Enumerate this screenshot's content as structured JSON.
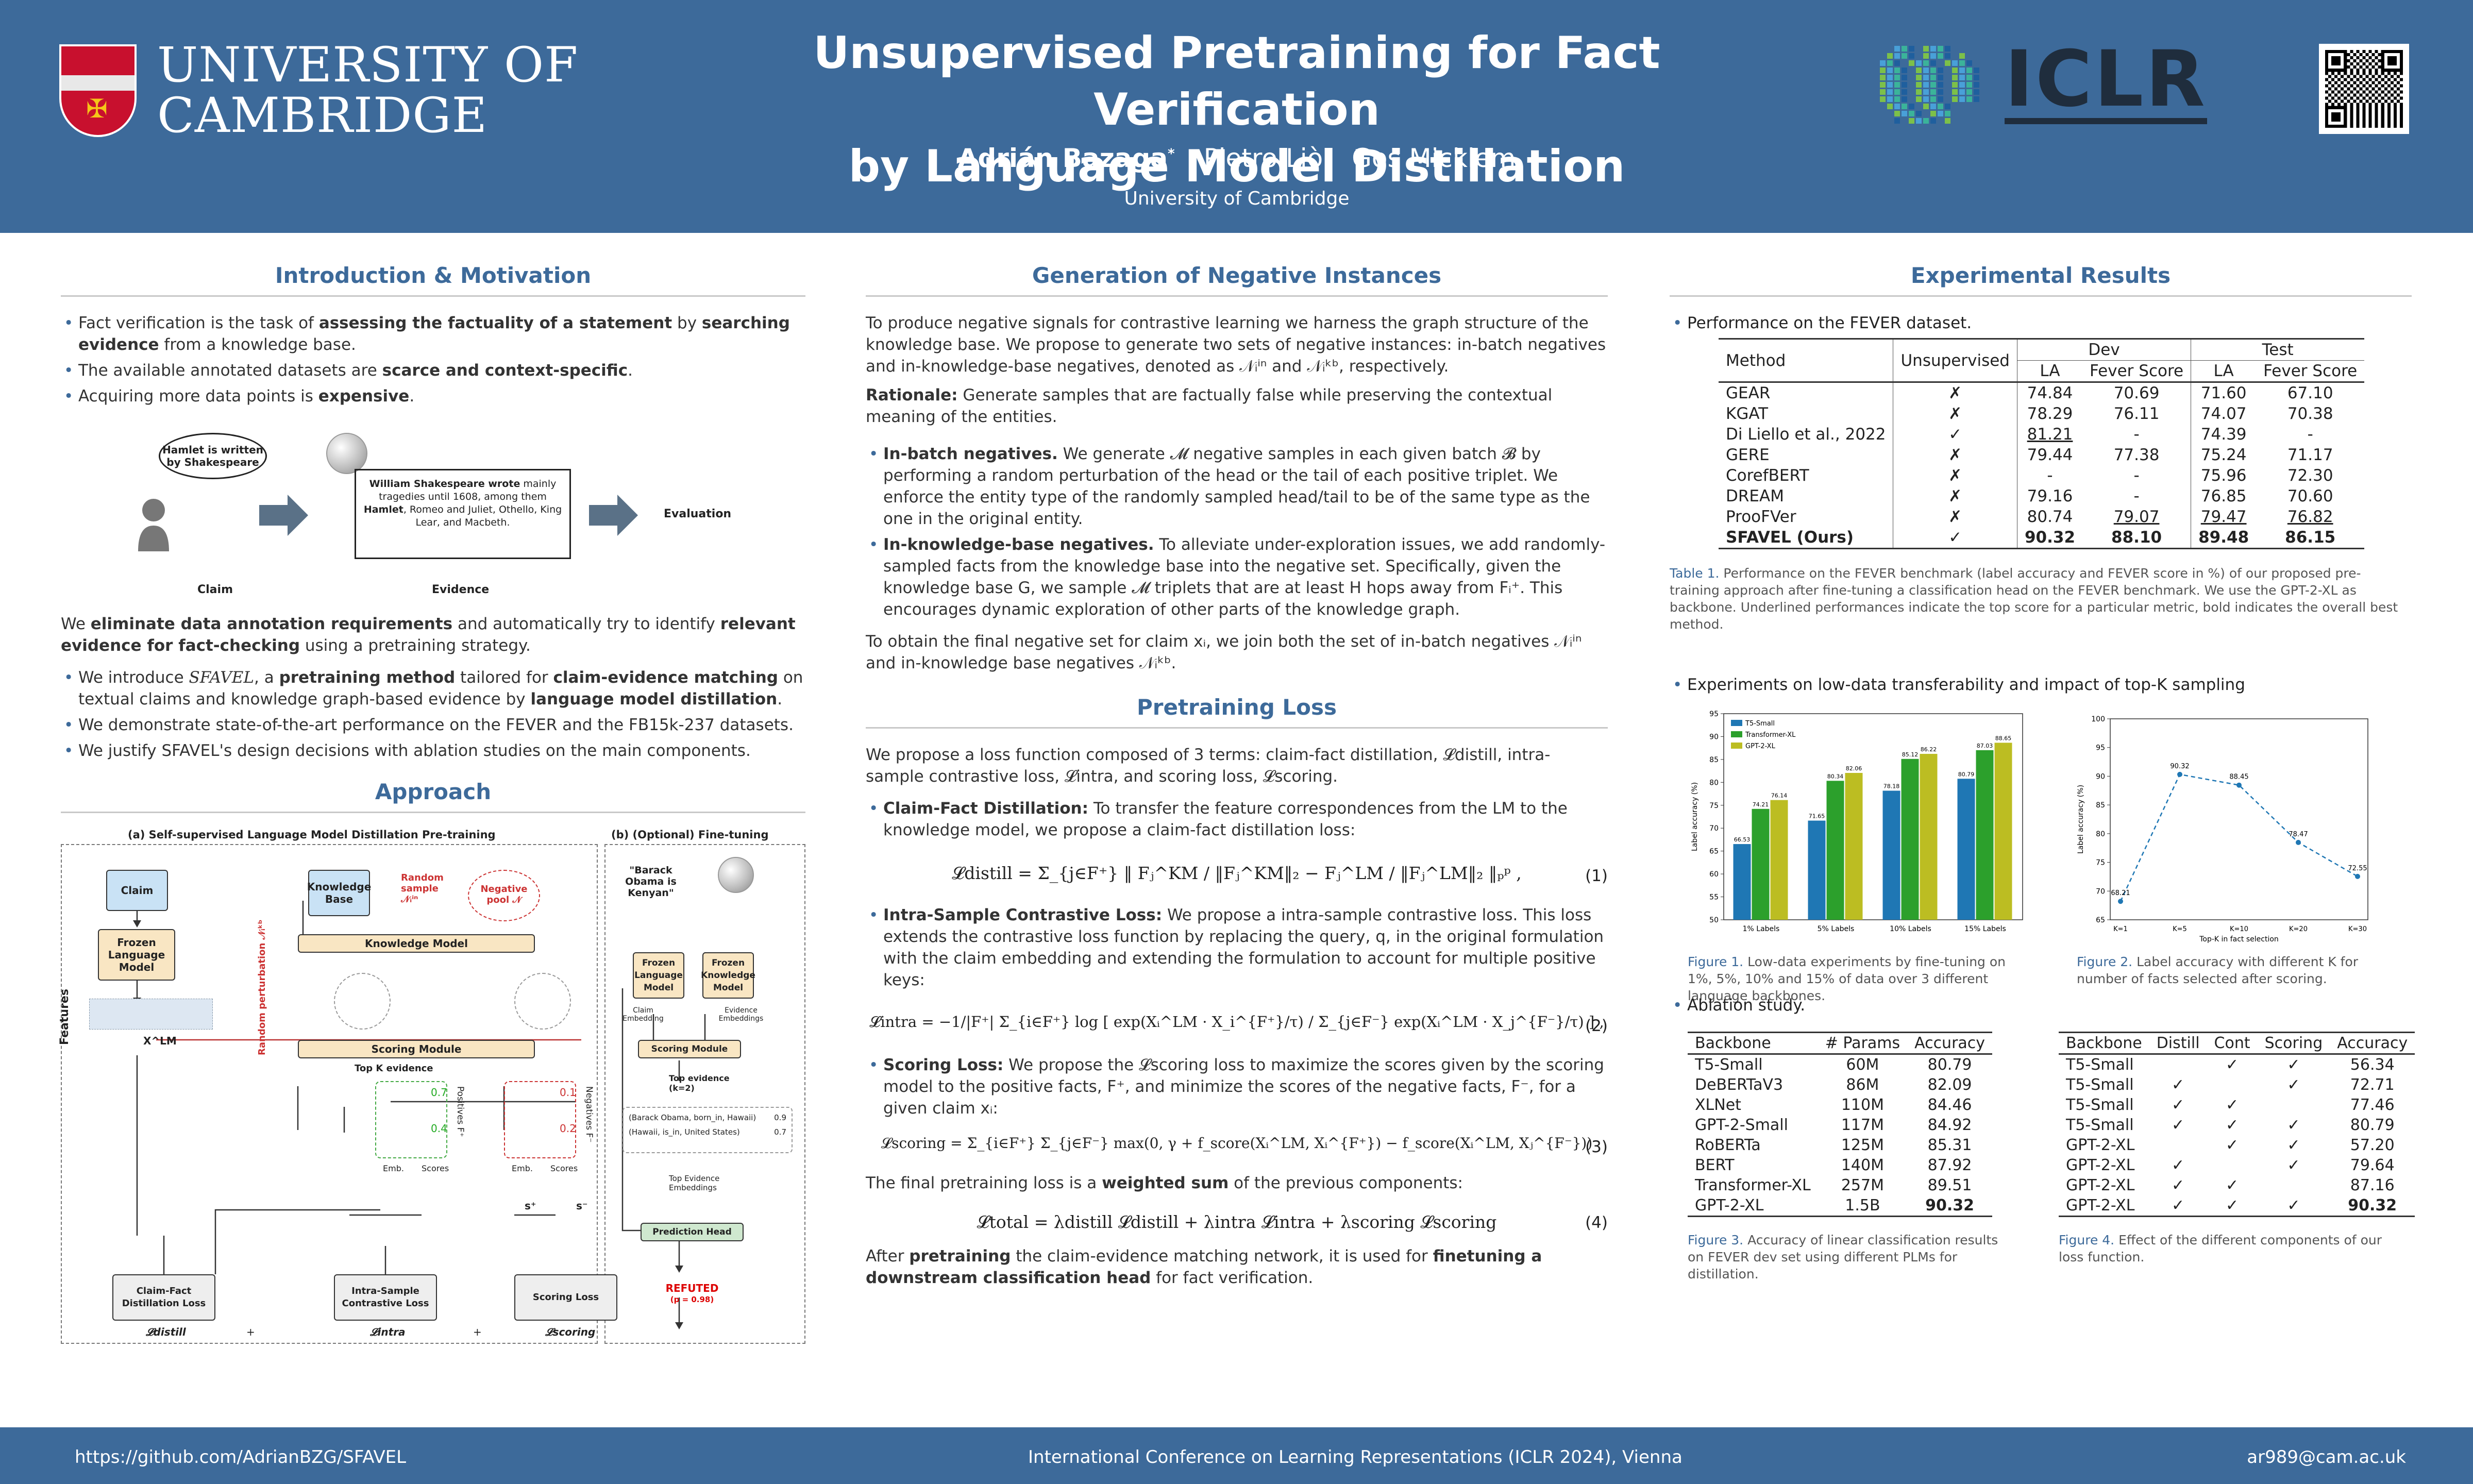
{
  "header": {
    "institution_line1": "UNIVERSITY OF",
    "institution_line2": "CAMBRIDGE",
    "title_line1": "Unsupervised Pretraining for Fact Verification",
    "title_line2": "by Language Model Distillation",
    "authors": [
      "Adrián Bazaga",
      "Pietro Liò",
      "Gos Micklem"
    ],
    "author_mark": "*",
    "affiliation": "University of Cambridge",
    "conference_logo": "ICLR"
  },
  "intro": {
    "title": "Introduction & Motivation",
    "bullets1": [
      {
        "pre": "Fact verification is the task of ",
        "b1": "assessing the factuality of a statement",
        "mid": " by ",
        "b2": "searching evidence",
        "post": " from a knowledge base."
      },
      {
        "pre": "The available annotated datasets are ",
        "b1": "scarce and context-specific",
        "post": "."
      },
      {
        "pre": "Acquiring more data points is ",
        "b1": "expensive",
        "post": "."
      }
    ],
    "fig": {
      "claim_bubble": "Hamlet is written by Shakespeare",
      "evidence_bold1": "William Shakespeare wrote",
      "evidence_rest1": " mainly tragedies until 1608, among them ",
      "evidence_bold2": "Hamlet",
      "evidence_rest2": ", Romeo and Juliet, Othello, King Lear, and Macbeth.",
      "claim_label": "Claim",
      "evidence_label": "Evidence",
      "evaluation_label": "Evaluation"
    },
    "para": {
      "pre": "We ",
      "b1": "eliminate data annotation requirements",
      "mid": " and automatically try to identify ",
      "b2": "relevant evidence for fact-checking",
      "post": " using a pretraining strategy."
    },
    "bullets2": [
      {
        "pre": "We introduce ",
        "it": "SFAVEL",
        "mid": ", a ",
        "b1": "pretraining method",
        "mid2": " tailored for ",
        "b2": "claim-evidence matching",
        "mid3": " on textual claims and knowledge graph-based evidence by ",
        "b3": "language model distillation",
        "post": "."
      },
      {
        "pre": "We demonstrate state-of-the-art performance on the FEVER and the FB15k-237 datasets."
      },
      {
        "pre": "We justify SFAVEL's design decisions with ablation studies on the main components."
      }
    ]
  },
  "approach": {
    "title": "Approach",
    "sub_a": "(a) Self-supervised Language Model Distillation Pre-training",
    "sub_b": "(b) (Optional) Fine-tuning",
    "claim": "Claim",
    "flm": "Frozen Language Model",
    "kb": "Knowledge Base",
    "random_sample": "Random sample 𝒩ᵢⁱⁿ",
    "neg_pool": "Negative pool 𝒩",
    "random_perturb": "Random perturbation 𝒩ᵢᵏᵇ",
    "knowledge_model": "Knowledge Model",
    "scoring_module": "Scoring Module",
    "features": "Features",
    "xlm": "X^LM",
    "topk": "Top K evidence",
    "positives": "Positives F⁺",
    "negatives": "Negatives F⁻",
    "emb": "Emb.",
    "scores": "Scores",
    "s_pos": "s⁺",
    "s_neg": "s⁻",
    "sc1": [
      "0.7",
      "0.4"
    ],
    "sc2": [
      "0.1",
      "0.2"
    ],
    "loss1": "Claim-Fact Distillation Loss",
    "loss2": "Intra-Sample Contrastive Loss",
    "loss3": "Scoring Loss",
    "l1": "𝓛distill",
    "l2": "𝓛intra",
    "l3": "𝓛scoring",
    "plus": "+",
    "ft_claim": "\"Barack Obama is Kenyan\"",
    "ft_flm": "Frozen Language Model",
    "ft_fkm": "Frozen Knowledge Model",
    "claim_emb": "Claim Embedding",
    "ev_emb": "Evidence Embeddings",
    "ft_scoring": "Scoring Module",
    "ft_topk": "Top evidence (k=2)",
    "ev1": "(Barack Obama, born_in, Hawaii)",
    "ev1s": "0.9",
    "ev2": "(Hawaii, is_in, United States)",
    "ev2s": "0.7",
    "top_emb": "Top Evidence Embeddings",
    "pred_head": "Prediction Head",
    "refuted": "REFUTED",
    "refuted_p": "(p = 0.98)"
  },
  "neg": {
    "title": "Generation of Negative Instances",
    "p1": "To produce negative signals for contrastive learning we harness the graph structure of the knowledge base. We propose to generate two sets of negative instances: in-batch negatives and in-knowledge-base negatives, denoted as 𝒩ᵢⁱⁿ and 𝒩ᵢᵏᵇ, respectively.",
    "p2_b": "Rationale:",
    "p2": " Generate samples that are factually false while preserving the contextual meaning of the entities.",
    "b1_h": "In-batch negatives.",
    "b1": " We generate 𝓜 negative samples in each given batch 𝓑 by performing a random perturbation of the head or the tail of each positive triplet. We enforce the entity type of the randomly sampled head/tail to be of the same type as the one in the original entity.",
    "b2_h": "In-knowledge-base negatives.",
    "b2": " To alleviate under-exploration issues, we add randomly-sampled facts from the knowledge base into the negative set. Specifically, given the knowledge base G, we sample 𝓜 triplets that are at least H hops away from Fᵢ⁺. This encourages dynamic exploration of other parts of the knowledge graph.",
    "p3": "To obtain the final negative set for claim xᵢ, we join both the set of in-batch negatives 𝒩ᵢⁱⁿ and in-knowledge base negatives 𝒩ᵢᵏᵇ."
  },
  "loss": {
    "title": "Pretraining Loss",
    "p1": "We propose a loss function composed of 3 terms: claim-fact distillation, 𝓛distill, intra-sample contrastive loss, 𝓛intra, and scoring loss, 𝓛scoring.",
    "b1_h": "Claim-Fact Distillation:",
    "b1": " To transfer the feature correspondences from the LM to the knowledge model, we propose a claim-fact distillation loss:",
    "eq1": "𝓛distill = Σ_{j∈F⁺} ‖ Fⱼ^KM / ‖Fⱼ^KM‖₂ − Fⱼ^LM / ‖Fⱼ^LM‖₂ ‖ₚᵖ ,",
    "n1": "(1)",
    "b2_h": "Intra-Sample Contrastive Loss:",
    "b2": " We propose a intra-sample contrastive loss. This loss extends the contrastive loss function by replacing the query, q, in the original formulation with the claim embedding and extending the formulation to account for multiple positive keys:",
    "eq2": "𝓛intra = −1/|F⁺| Σ_{i∈F⁺} log [ exp(Xᵢ^LM · X_i^{F⁺}/τ) / Σ_{j∈F⁻} exp(Xᵢ^LM · X_j^{F⁻}/τ) ] ,",
    "n2": "(2)",
    "b3_h": "Scoring Loss:",
    "b3": " We propose the 𝓛scoring loss to maximize the scores given by the scoring model to the positive facts, F⁺, and minimize the scores of the negative facts, F⁻, for a given claim xᵢ:",
    "eq3": "𝓛scoring = Σ_{i∈F⁺} Σ_{j∈F⁻} max(0, γ + f_score(Xᵢ^LM, Xᵢ^{F⁺}) − f_score(Xᵢ^LM, Xⱼ^{F⁻}))",
    "n3": "(3)",
    "p2_pre": "The final pretraining loss is a ",
    "p2_b": "weighted sum",
    "p2_post": " of the previous components:",
    "eq4": "𝓛total = λdistill 𝓛distill + λintra 𝓛intra + λscoring 𝓛scoring",
    "n4": "(4)",
    "p3_pre": "After ",
    "p3_b1": "pretraining",
    "p3_mid": " the claim-evidence matching network, it is used for ",
    "p3_b2": "finetuning a downstream classification head",
    "p3_post": " for fact verification."
  },
  "results": {
    "title": "Experimental Results",
    "bullet1": "Performance on the FEVER dataset.",
    "t1": {
      "h_method": "Method",
      "h_unsup": "Unsupervised",
      "h_dev": "Dev",
      "h_test": "Test",
      "h_la": "LA",
      "h_fs": "Fever Score",
      "rows": [
        [
          "GEAR",
          "✗",
          "74.84",
          "70.69",
          "71.60",
          "67.10"
        ],
        [
          "KGAT",
          "✗",
          "78.29",
          "76.11",
          "74.07",
          "70.38"
        ],
        [
          "Di Liello et al., 2022",
          "✓",
          "81.21",
          "-",
          "74.39",
          "-"
        ],
        [
          "GERE",
          "✗",
          "79.44",
          "77.38",
          "75.24",
          "71.17"
        ],
        [
          "CorefBERT",
          "✗",
          "-",
          "-",
          "75.96",
          "72.30"
        ],
        [
          "DREAM",
          "✗",
          "79.16",
          "-",
          "76.85",
          "70.60"
        ],
        [
          "ProoFVer",
          "✗",
          "80.74",
          "79.07",
          "79.47",
          "76.82"
        ],
        [
          "SFAVEL (Ours)",
          "✓",
          "90.32",
          "88.10",
          "89.48",
          "86.15"
        ]
      ]
    },
    "t1_cap_lbl": "Table 1.",
    "t1_cap": " Performance on the FEVER benchmark (label accuracy and FEVER score in %) of our proposed pre-training approach after fine-tuning a classification head on the FEVER benchmark. We use the GPT-2-XL as backbone. Underlined performances indicate the top score for a particular metric, bold indicates the overall best method.",
    "bullet2": "Experiments on low-data transferability and impact of top-K sampling",
    "fig1_cap_lbl": "Figure 1.",
    "fig1_cap": " Low-data experiments by fine-tuning on 1%, 5%, 10% and 15% of data over 3 different language backbones.",
    "fig2_cap_lbl": "Figure 2.",
    "fig2_cap": " Label accuracy with different K for number of facts selected after scoring.",
    "bullet3": "Ablation study.",
    "t3": {
      "h": [
        "Backbone",
        "# Params",
        "Accuracy"
      ],
      "rows": [
        [
          "T5-Small",
          "60M",
          "80.79"
        ],
        [
          "DeBERTaV3",
          "86M",
          "82.09"
        ],
        [
          "XLNet",
          "110M",
          "84.46"
        ],
        [
          "GPT-2-Small",
          "117M",
          "84.92"
        ],
        [
          "RoBERTa",
          "125M",
          "85.31"
        ],
        [
          "BERT",
          "140M",
          "87.92"
        ],
        [
          "Transformer-XL",
          "257M",
          "89.51"
        ],
        [
          "GPT-2-XL",
          "1.5B",
          "90.32"
        ]
      ]
    },
    "fig3_cap_lbl": "Figure 3.",
    "fig3_cap": " Accuracy of linear classification results on FEVER dev set using different PLMs for distillation.",
    "t4": {
      "h": [
        "Backbone",
        "Distill",
        "Cont",
        "Scoring",
        "Accuracy"
      ],
      "rows": [
        [
          "T5-Small",
          "",
          "✓",
          "✓",
          "56.34"
        ],
        [
          "T5-Small",
          "✓",
          "",
          "✓",
          "72.71"
        ],
        [
          "T5-Small",
          "✓",
          "✓",
          "",
          "77.46"
        ],
        [
          "T5-Small",
          "✓",
          "✓",
          "✓",
          "80.79"
        ],
        [
          "GPT-2-XL",
          "",
          "✓",
          "✓",
          "57.20"
        ],
        [
          "GPT-2-XL",
          "✓",
          "",
          "✓",
          "79.64"
        ],
        [
          "GPT-2-XL",
          "✓",
          "✓",
          "",
          "87.16"
        ],
        [
          "GPT-2-XL",
          "✓",
          "✓",
          "✓",
          "90.32"
        ]
      ]
    },
    "fig4_cap_lbl": "Figure 4.",
    "fig4_cap": " Effect of the different components of our loss function."
  },
  "chart_data": [
    {
      "type": "bar",
      "categories": [
        "1% Labels",
        "5% Labels",
        "10% Labels",
        "15% Labels"
      ],
      "series": [
        {
          "name": "T5-Small",
          "color": "#1f77b4",
          "values": [
            66.53,
            71.65,
            78.18,
            80.79
          ]
        },
        {
          "name": "Transformer-XL",
          "color": "#2ca02c",
          "values": [
            74.21,
            80.34,
            85.12,
            87.03
          ]
        },
        {
          "name": "GPT-2-XL",
          "color": "#bcbd22",
          "values": [
            76.14,
            82.06,
            86.22,
            88.65
          ]
        }
      ],
      "ylabel": "Label accuracy (%)",
      "ylim": [
        50,
        95
      ],
      "yticks": [
        50,
        55,
        60,
        65,
        70,
        75,
        80,
        85,
        90,
        95
      ]
    },
    {
      "type": "line",
      "x": [
        "K=1",
        "K=5",
        "K=10",
        "K=20",
        "K=30"
      ],
      "values": [
        68.21,
        90.32,
        88.45,
        78.47,
        72.55
      ],
      "xlabel": "Top-K in fact selection",
      "ylabel": "Label accuracy (%)",
      "ylim": [
        65,
        100
      ],
      "yticks": [
        65,
        70,
        75,
        80,
        85,
        90,
        95,
        100
      ]
    }
  ],
  "footer": {
    "github": "https://github.com/AdrianBZG/SFAVEL",
    "conference": "International Conference on Learning Representations (ICLR 2024), Vienna",
    "email": "ar989@cam.ac.uk"
  }
}
